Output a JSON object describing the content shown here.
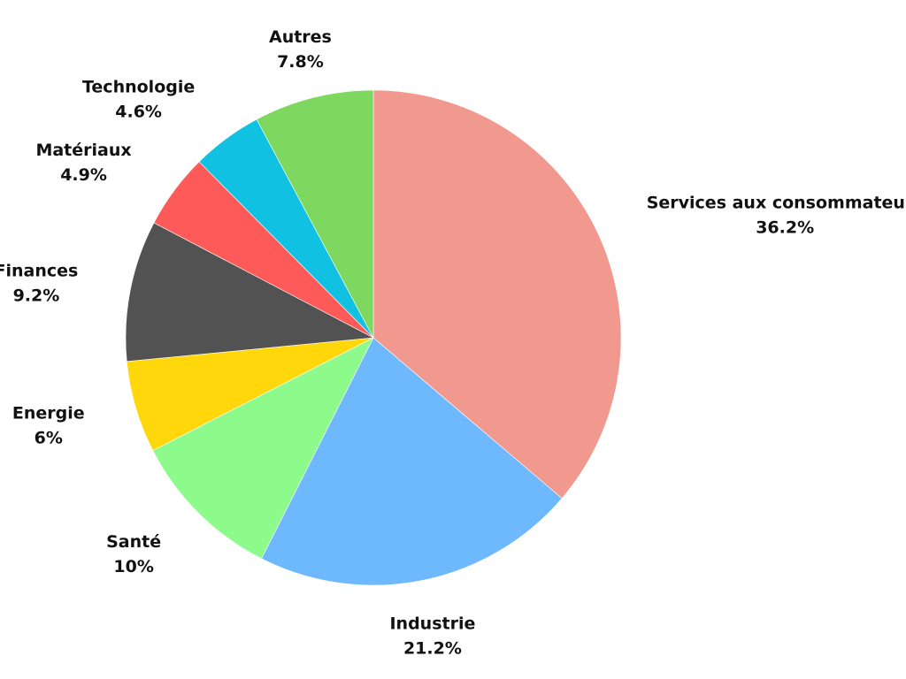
{
  "chart_data": {
    "type": "pie",
    "title": "",
    "start_angle_deg": 0,
    "direction": "clockwise",
    "legend": "none",
    "slices": [
      {
        "label": "Services aux consommateurs",
        "value": 36.2,
        "value_label": "36.2%",
        "color": "#F1998F"
      },
      {
        "label": "Industrie",
        "value": 21.2,
        "value_label": "21.2%",
        "color": "#6EB8FD"
      },
      {
        "label": "Santé",
        "value": 10,
        "value_label": "10%",
        "color": "#8DFB8C"
      },
      {
        "label": "Energie",
        "value": 6,
        "value_label": "6%",
        "color": "#FFD70A"
      },
      {
        "label": "Finances",
        "value": 9.2,
        "value_label": "9.2%",
        "color": "#525252"
      },
      {
        "label": "Matériaux",
        "value": 4.9,
        "value_label": "4.9%",
        "color": "#FF5A5A"
      },
      {
        "label": "Technologie",
        "value": 4.6,
        "value_label": "4.6%",
        "color": "#10C1E1"
      },
      {
        "label": "Autres",
        "value": 7.8,
        "value_label": "7.8%",
        "color": "#7ED75E"
      }
    ]
  }
}
